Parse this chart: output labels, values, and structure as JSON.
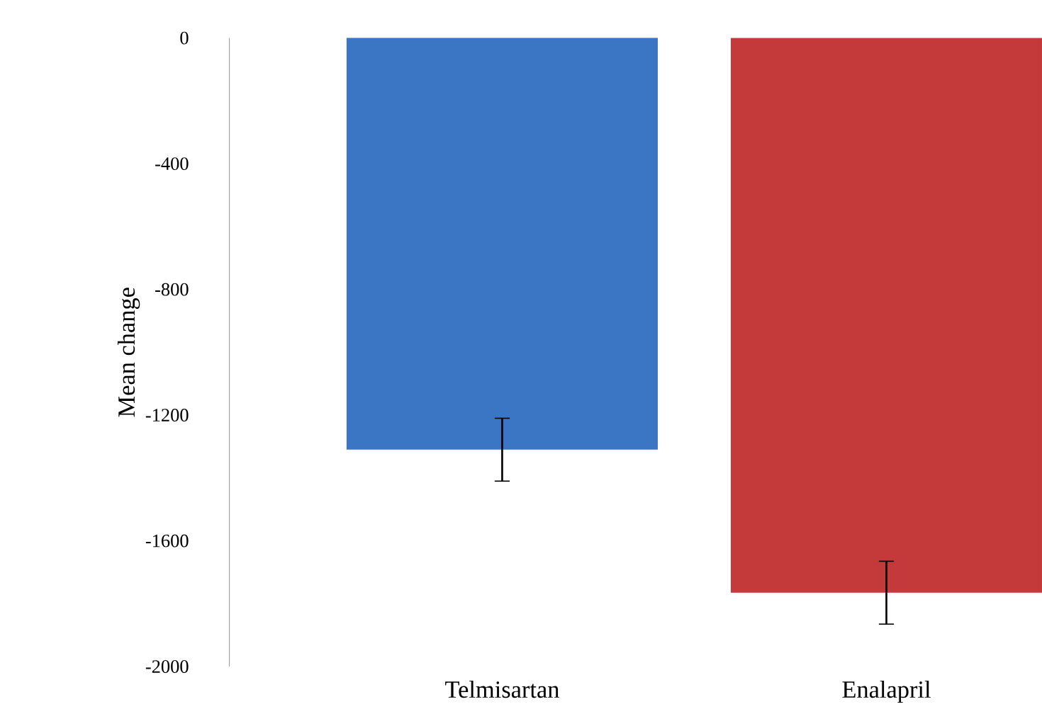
{
  "chart_data": {
    "type": "bar",
    "ylabel": "Mean change",
    "categories": [
      "Telmisartan",
      "Enalapril"
    ],
    "values": [
      -1310,
      -1765
    ],
    "errors": [
      100,
      100
    ],
    "colors": [
      "#3a76c4",
      "#c43a3a"
    ],
    "ylim": [
      -2000,
      0
    ],
    "yticks": [
      0,
      -400,
      -800,
      -1200,
      -1600,
      -2000
    ],
    "grid": false
  }
}
